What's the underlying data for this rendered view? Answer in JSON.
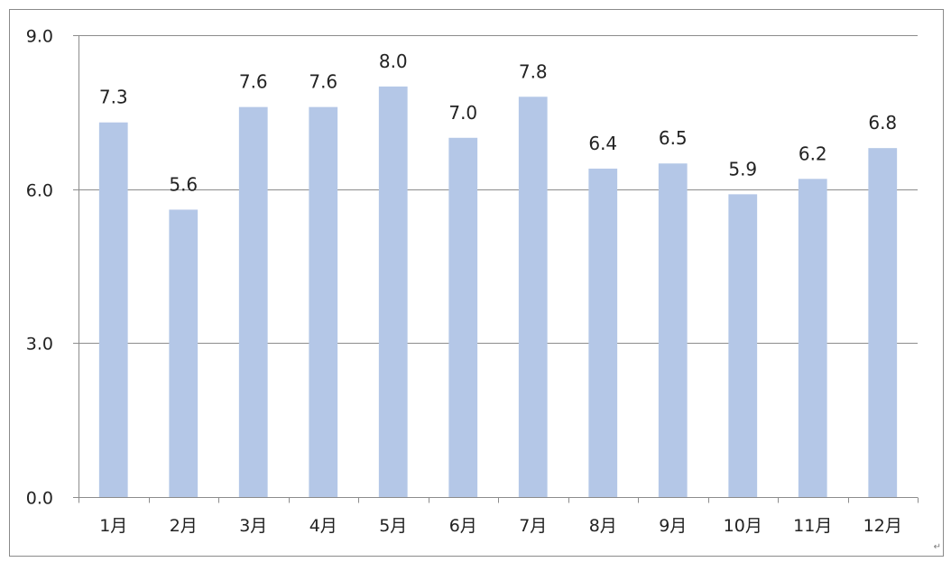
{
  "chart_data": {
    "type": "bar",
    "categories": [
      "1月",
      "2月",
      "3月",
      "4月",
      "5月",
      "6月",
      "7月",
      "8月",
      "9月",
      "10月",
      "11月",
      "12月"
    ],
    "values": [
      7.3,
      5.6,
      7.6,
      7.6,
      8.0,
      7.0,
      7.8,
      6.4,
      6.5,
      5.9,
      6.2,
      6.8
    ],
    "data_labels": [
      "7.3",
      "5.6",
      "7.6",
      "7.6",
      "8.0",
      "7.0",
      "7.8",
      "6.4",
      "6.5",
      "5.9",
      "6.2",
      "6.8"
    ],
    "ylim": [
      0,
      9
    ],
    "yticks": [
      0,
      3,
      6,
      9
    ],
    "ytick_labels": [
      "0.0",
      "3.0",
      "6.0",
      "9.0"
    ],
    "title": "",
    "xlabel": "",
    "ylabel": "",
    "grid": true,
    "legend": "none",
    "colors": {
      "bar": "#b4c7e7",
      "grid": "#8c8c8c",
      "axis": "#8c8c8c",
      "text": "#222222"
    }
  }
}
